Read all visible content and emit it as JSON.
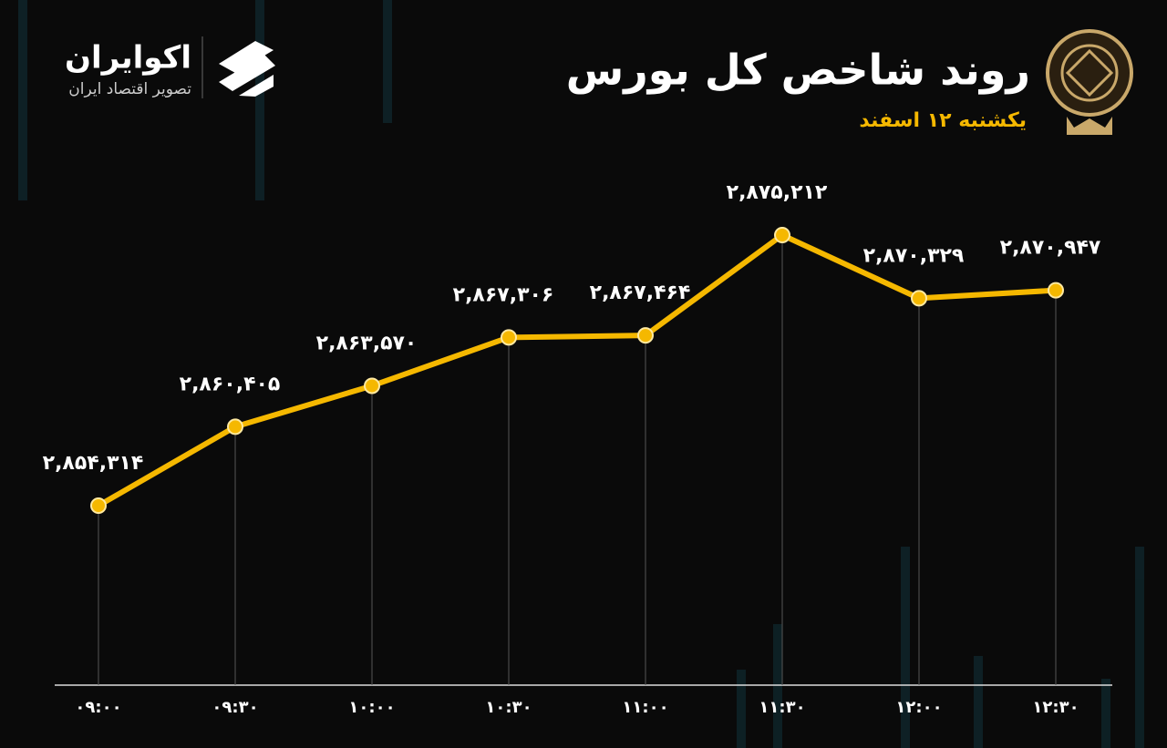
{
  "brand": {
    "name": "اکوایران",
    "tagline": "تصویر اقتصاد ایران"
  },
  "chart_data": {
    "type": "line",
    "title": "روند شاخص کل بورس",
    "subtitle": "یکشنبه ۱۲ اسفند",
    "categories": [
      "۰۹:۰۰",
      "۰۹:۳۰",
      "۱۰:۰۰",
      "۱۰:۳۰",
      "۱۱:۰۰",
      "۱۱:۳۰",
      "۱۲:۰۰",
      "۱۲:۳۰"
    ],
    "values": [
      2854314,
      2860405,
      2863570,
      2867306,
      2867464,
      2875212,
      2870329,
      2870947
    ],
    "value_labels": [
      "۲,۸۵۴,۳۱۴",
      "۲,۸۶۰,۴۰۵",
      "۲,۸۶۳,۵۷۰",
      "۲,۸۶۷,۳۰۶",
      "۲,۸۶۷,۴۶۴",
      "۲,۸۷۵,۲۱۲",
      "۲,۸۷۰,۳۲۹",
      "۲,۸۷۰,۹۴۷"
    ],
    "color": "#f5b800"
  }
}
